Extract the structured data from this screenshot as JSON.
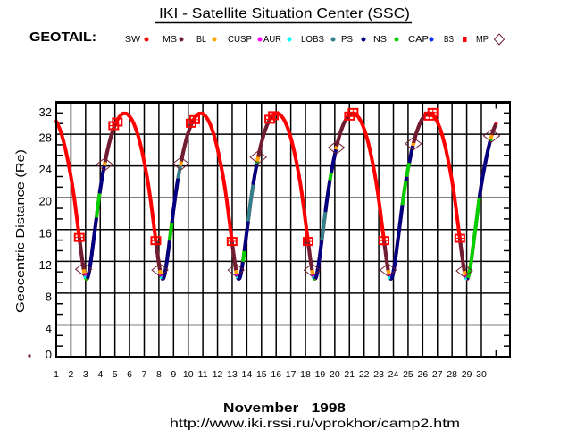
{
  "header": {
    "title": "IKI - Satellite Situation Center (SSC)",
    "satellite": "GEOTAIL:"
  },
  "legend": [
    {
      "label": "SW",
      "color": "#ff0000",
      "marker": "dot"
    },
    {
      "label": "MS",
      "color": "#6e1e32",
      "marker": "dot"
    },
    {
      "label": "BL",
      "color": "#ffa500",
      "marker": "dot"
    },
    {
      "label": "CUSP",
      "color": "#ff00ff",
      "marker": "dot"
    },
    {
      "label": "AUR",
      "color": "#00ffff",
      "marker": "dot"
    },
    {
      "label": "LOBS",
      "color": "#31808c",
      "marker": "dot"
    },
    {
      "label": "PS",
      "color": "#000080",
      "marker": "dot"
    },
    {
      "label": "NS",
      "color": "#00d000",
      "marker": "dot"
    },
    {
      "label": "CAP",
      "color": "#0033ff",
      "marker": "dot"
    },
    {
      "label": "BS",
      "color": "#ff0000",
      "marker": "square"
    },
    {
      "label": "MP",
      "color": "#6e1e32",
      "marker": "diamond"
    }
  ],
  "chart_data": {
    "type": "line",
    "title": "IKI - Satellite Situation Center (SSC)",
    "xlabel": "November   1998",
    "ylabel": "Geocentric Distance (Re)",
    "xlim": [
      1,
      31.95
    ],
    "ylim": [
      0,
      32
    ],
    "grid": true,
    "x_ticks": [
      1,
      2,
      3,
      4,
      5,
      6,
      7,
      8,
      9,
      10,
      11,
      12,
      13,
      14,
      15,
      16,
      17,
      18,
      19,
      20,
      21,
      22,
      23,
      24,
      25,
      26,
      27,
      28,
      29,
      30
    ],
    "x_minor_ticks": [
      31
    ],
    "y_ticks": [
      0,
      4,
      8,
      12,
      16,
      20,
      24,
      28,
      32
    ],
    "y_tick_labels": [
      "0",
      "4",
      "8",
      "12",
      "16",
      "20",
      "24",
      "28",
      "32"
    ],
    "y_minor_per_major": 3,
    "default_region": "SW",
    "region_colors": {
      "SW": "#ff0000",
      "MS": "#6e1e32",
      "BL": "#ffa500",
      "CUSP": "#ff00ff",
      "AUR": "#00ffff",
      "LOBS": "#31808c",
      "PS": "#000080",
      "NS": "#00d000",
      "CAP": "#0033ff",
      "BS": "#ff0000",
      "MP": "#6e1e32"
    },
    "series": [
      {
        "name": "GEOTAIL geocentric distance",
        "points": [
          [
            1.0,
            29.6
          ],
          [
            1.27,
            28.5
          ],
          [
            1.55,
            26.7
          ],
          [
            1.81,
            24.5
          ],
          [
            2.05,
            22.1
          ],
          [
            2.26,
            19.5
          ],
          [
            2.44,
            16.9
          ],
          [
            2.6,
            14.6
          ],
          [
            2.74,
            12.6
          ],
          [
            2.86,
            11.1
          ],
          [
            2.97,
            10.1
          ],
          [
            3.07,
            9.8
          ],
          [
            3.17,
            10.1
          ],
          [
            3.28,
            11.1
          ],
          [
            3.4,
            12.6
          ],
          [
            3.54,
            14.6
          ],
          [
            3.7,
            16.9
          ],
          [
            3.88,
            19.5
          ],
          [
            4.09,
            22.1
          ],
          [
            4.33,
            24.5
          ],
          [
            4.59,
            26.7
          ],
          [
            4.87,
            28.5
          ],
          [
            5.17,
            29.8
          ],
          [
            5.47,
            30.5
          ],
          [
            5.67,
            30.6
          ],
          [
            5.86,
            30.5
          ],
          [
            6.16,
            29.8
          ],
          [
            6.46,
            28.5
          ],
          [
            6.74,
            26.7
          ],
          [
            7.0,
            24.5
          ],
          [
            7.24,
            22.1
          ],
          [
            7.45,
            19.5
          ],
          [
            7.63,
            16.9
          ],
          [
            7.79,
            14.6
          ],
          [
            7.93,
            12.6
          ],
          [
            8.05,
            11.1
          ],
          [
            8.16,
            10.1
          ],
          [
            8.26,
            9.8
          ],
          [
            8.36,
            10.1
          ],
          [
            8.47,
            11.1
          ],
          [
            8.59,
            12.6
          ],
          [
            8.73,
            14.6
          ],
          [
            8.89,
            16.9
          ],
          [
            9.07,
            19.5
          ],
          [
            9.28,
            22.1
          ],
          [
            9.52,
            24.5
          ],
          [
            9.78,
            26.7
          ],
          [
            10.06,
            28.5
          ],
          [
            10.36,
            29.8
          ],
          [
            10.66,
            30.5
          ],
          [
            10.86,
            30.6
          ],
          [
            11.05,
            30.5
          ],
          [
            11.35,
            29.8
          ],
          [
            11.65,
            28.5
          ],
          [
            11.93,
            26.7
          ],
          [
            12.19,
            24.5
          ],
          [
            12.43,
            22.1
          ],
          [
            12.64,
            19.5
          ],
          [
            12.82,
            16.9
          ],
          [
            12.98,
            14.6
          ],
          [
            13.12,
            12.6
          ],
          [
            13.24,
            11.1
          ],
          [
            13.35,
            10.1
          ],
          [
            13.45,
            9.8
          ],
          [
            13.55,
            10.1
          ],
          [
            13.66,
            11.1
          ],
          [
            13.78,
            12.6
          ],
          [
            13.92,
            14.6
          ],
          [
            14.08,
            16.9
          ],
          [
            14.26,
            19.5
          ],
          [
            14.47,
            22.1
          ],
          [
            14.71,
            24.5
          ],
          [
            14.97,
            26.7
          ],
          [
            15.25,
            28.5
          ],
          [
            15.55,
            29.8
          ],
          [
            15.85,
            30.5
          ],
          [
            16.05,
            30.6
          ],
          [
            16.24,
            30.5
          ],
          [
            16.54,
            29.8
          ],
          [
            16.84,
            28.5
          ],
          [
            17.12,
            26.7
          ],
          [
            17.38,
            24.5
          ],
          [
            17.62,
            22.1
          ],
          [
            17.83,
            19.5
          ],
          [
            18.01,
            16.9
          ],
          [
            18.17,
            14.6
          ],
          [
            18.31,
            12.6
          ],
          [
            18.43,
            11.1
          ],
          [
            18.54,
            10.1
          ],
          [
            18.64,
            9.8
          ],
          [
            18.74,
            10.1
          ],
          [
            18.85,
            11.1
          ],
          [
            18.97,
            12.6
          ],
          [
            19.11,
            14.6
          ],
          [
            19.27,
            16.9
          ],
          [
            19.45,
            19.5
          ],
          [
            19.66,
            22.1
          ],
          [
            19.9,
            24.5
          ],
          [
            20.16,
            26.7
          ],
          [
            20.44,
            28.5
          ],
          [
            20.74,
            29.8
          ],
          [
            21.04,
            30.5
          ],
          [
            21.24,
            30.6
          ],
          [
            21.43,
            30.5
          ],
          [
            21.73,
            29.8
          ],
          [
            22.03,
            28.5
          ],
          [
            22.31,
            26.7
          ],
          [
            22.57,
            24.5
          ],
          [
            22.81,
            22.1
          ],
          [
            23.02,
            19.5
          ],
          [
            23.2,
            16.9
          ],
          [
            23.36,
            14.6
          ],
          [
            23.5,
            12.6
          ],
          [
            23.62,
            11.1
          ],
          [
            23.73,
            10.1
          ],
          [
            23.83,
            9.8
          ],
          [
            23.93,
            10.1
          ],
          [
            24.04,
            11.1
          ],
          [
            24.16,
            12.6
          ],
          [
            24.3,
            14.6
          ],
          [
            24.46,
            16.9
          ],
          [
            24.64,
            19.5
          ],
          [
            24.85,
            22.1
          ],
          [
            25.09,
            24.5
          ],
          [
            25.35,
            26.7
          ],
          [
            25.63,
            28.5
          ],
          [
            25.93,
            29.8
          ],
          [
            26.23,
            30.5
          ],
          [
            26.43,
            30.6
          ],
          [
            26.62,
            30.5
          ],
          [
            26.92,
            29.8
          ],
          [
            27.22,
            28.5
          ],
          [
            27.5,
            26.7
          ],
          [
            27.76,
            24.5
          ],
          [
            28.0,
            22.1
          ],
          [
            28.21,
            19.5
          ],
          [
            28.39,
            16.9
          ],
          [
            28.55,
            14.6
          ],
          [
            28.69,
            12.6
          ],
          [
            28.81,
            11.1
          ],
          [
            28.92,
            10.1
          ],
          [
            29.02,
            9.8
          ],
          [
            29.12,
            10.1
          ],
          [
            29.23,
            11.1
          ],
          [
            29.35,
            12.6
          ],
          [
            29.49,
            14.6
          ],
          [
            29.65,
            16.9
          ],
          [
            29.83,
            19.5
          ],
          [
            30.04,
            22.1
          ],
          [
            30.28,
            24.5
          ],
          [
            30.54,
            26.7
          ],
          [
            30.82,
            28.5
          ],
          [
            31.0,
            29.3
          ]
        ]
      }
    ],
    "regions": [
      {
        "region": "MS",
        "from": 2.57,
        "to": 2.87
      },
      {
        "region": "BL",
        "from": 2.87,
        "to": 2.92
      },
      {
        "region": "CUSP",
        "from": 2.92,
        "to": 2.96
      },
      {
        "region": "AUR",
        "from": 2.96,
        "to": 3.02
      },
      {
        "region": "NS",
        "from": 3.02,
        "to": 3.09
      },
      {
        "region": "PS",
        "from": 3.09,
        "to": 3.74
      },
      {
        "region": "NS",
        "from": 3.74,
        "to": 3.96
      },
      {
        "region": "PS",
        "from": 3.96,
        "to": 4.28
      },
      {
        "region": "BL",
        "from": 4.28,
        "to": 4.33
      },
      {
        "region": "MS",
        "from": 4.33,
        "to": 5.04
      },
      {
        "region": "MS",
        "from": 7.79,
        "to": 8.07
      },
      {
        "region": "BL",
        "from": 8.07,
        "to": 8.12
      },
      {
        "region": "CUSP",
        "from": 8.12,
        "to": 8.16
      },
      {
        "region": "AUR",
        "from": 8.16,
        "to": 8.22
      },
      {
        "region": "PS",
        "from": 8.22,
        "to": 8.73
      },
      {
        "region": "NS",
        "from": 8.73,
        "to": 8.88
      },
      {
        "region": "PS",
        "from": 8.88,
        "to": 9.31
      },
      {
        "region": "LOBS",
        "from": 9.31,
        "to": 9.47
      },
      {
        "region": "BL",
        "from": 9.47,
        "to": 9.53
      },
      {
        "region": "MS",
        "from": 9.53,
        "to": 10.32
      },
      {
        "region": "MS",
        "from": 12.99,
        "to": 13.26
      },
      {
        "region": "BL",
        "from": 13.26,
        "to": 13.31
      },
      {
        "region": "CUSP",
        "from": 13.31,
        "to": 13.35
      },
      {
        "region": "AUR",
        "from": 13.35,
        "to": 13.4
      },
      {
        "region": "PS",
        "from": 13.4,
        "to": 13.73
      },
      {
        "region": "NS",
        "from": 13.73,
        "to": 13.83
      },
      {
        "region": "PS",
        "from": 13.83,
        "to": 14.09
      },
      {
        "region": "LOBS",
        "from": 14.09,
        "to": 14.43
      },
      {
        "region": "PS",
        "from": 14.43,
        "to": 14.68
      },
      {
        "region": "NS",
        "from": 14.68,
        "to": 14.72
      },
      {
        "region": "BL",
        "from": 14.72,
        "to": 14.78
      },
      {
        "region": "MS",
        "from": 14.78,
        "to": 15.69
      },
      {
        "region": "MS",
        "from": 18.18,
        "to": 18.45
      },
      {
        "region": "BL",
        "from": 18.45,
        "to": 18.5
      },
      {
        "region": "CUSP",
        "from": 18.5,
        "to": 18.54
      },
      {
        "region": "AUR",
        "from": 18.54,
        "to": 18.6
      },
      {
        "region": "NS",
        "from": 18.6,
        "to": 18.66
      },
      {
        "region": "PS",
        "from": 18.66,
        "to": 19.11
      },
      {
        "region": "LOBS",
        "from": 19.11,
        "to": 19.36
      },
      {
        "region": "PS",
        "from": 19.36,
        "to": 19.67
      },
      {
        "region": "NS",
        "from": 19.67,
        "to": 19.76
      },
      {
        "region": "PS",
        "from": 19.76,
        "to": 20.08
      },
      {
        "region": "BL",
        "from": 20.08,
        "to": 20.13
      },
      {
        "region": "MS",
        "from": 20.13,
        "to": 21.13
      },
      {
        "region": "MS",
        "from": 23.36,
        "to": 23.64
      },
      {
        "region": "BL",
        "from": 23.64,
        "to": 23.69
      },
      {
        "region": "CUSP",
        "from": 23.69,
        "to": 23.73
      },
      {
        "region": "AUR",
        "from": 23.73,
        "to": 23.8
      },
      {
        "region": "PS",
        "from": 23.8,
        "to": 24.61
      },
      {
        "region": "NS",
        "from": 24.61,
        "to": 24.85
      },
      {
        "region": "PS",
        "from": 24.85,
        "to": 24.9
      },
      {
        "region": "NS",
        "from": 24.9,
        "to": 25.08
      },
      {
        "region": "PS",
        "from": 25.08,
        "to": 25.33
      },
      {
        "region": "BL",
        "from": 25.33,
        "to": 25.38
      },
      {
        "region": "MS",
        "from": 25.38,
        "to": 26.57
      },
      {
        "region": "MS",
        "from": 28.53,
        "to": 28.84
      },
      {
        "region": "BL",
        "from": 28.84,
        "to": 28.9
      },
      {
        "region": "CUSP",
        "from": 28.9,
        "to": 28.94
      },
      {
        "region": "AUR",
        "from": 28.94,
        "to": 29.02
      },
      {
        "region": "PS",
        "from": 29.02,
        "to": 29.08
      },
      {
        "region": "NS",
        "from": 29.08,
        "to": 29.87
      },
      {
        "region": "PS",
        "from": 29.87,
        "to": 30.6
      },
      {
        "region": "NS",
        "from": 30.6,
        "to": 30.64
      },
      {
        "region": "BL",
        "from": 30.64,
        "to": 30.72
      },
      {
        "region": "MS",
        "from": 30.72,
        "to": 31.0
      }
    ],
    "markers": {
      "BS": [
        {
          "day": 2.57,
          "re": 15.0,
          "leg": "in"
        },
        {
          "day": 5.04,
          "re": 29.3,
          "leg": "out"
        },
        {
          "day": 7.79,
          "re": 14.6,
          "leg": "in"
        },
        {
          "day": 10.32,
          "re": 29.6,
          "leg": "out"
        },
        {
          "day": 12.99,
          "re": 14.5,
          "leg": "in"
        },
        {
          "day": 15.69,
          "re": 30.1,
          "leg": "out"
        },
        {
          "day": 18.18,
          "re": 14.5,
          "leg": "in"
        },
        {
          "day": 21.13,
          "re": 30.5,
          "leg": "out"
        },
        {
          "day": 23.36,
          "re": 14.6,
          "leg": "in"
        },
        {
          "day": 26.57,
          "re": 30.5,
          "leg": "out"
        },
        {
          "day": 28.53,
          "re": 14.9,
          "leg": "in"
        }
      ],
      "MP": [
        {
          "day": 2.87,
          "re": 11.0
        },
        {
          "day": 4.3,
          "re": 24.2
        },
        {
          "day": 8.07,
          "re": 10.9
        },
        {
          "day": 9.5,
          "re": 24.3
        },
        {
          "day": 13.26,
          "re": 10.9
        },
        {
          "day": 14.78,
          "re": 25.1
        },
        {
          "day": 18.45,
          "re": 10.9
        },
        {
          "day": 20.11,
          "re": 26.3
        },
        {
          "day": 23.64,
          "re": 10.9
        },
        {
          "day": 25.36,
          "re": 26.8
        },
        {
          "day": 28.84,
          "re": 10.8
        },
        {
          "day": 30.7,
          "re": 27.8
        }
      ]
    }
  },
  "footer": {
    "url": "http://www.iki.rssi.ru/vprokhor/camp2.htm"
  }
}
